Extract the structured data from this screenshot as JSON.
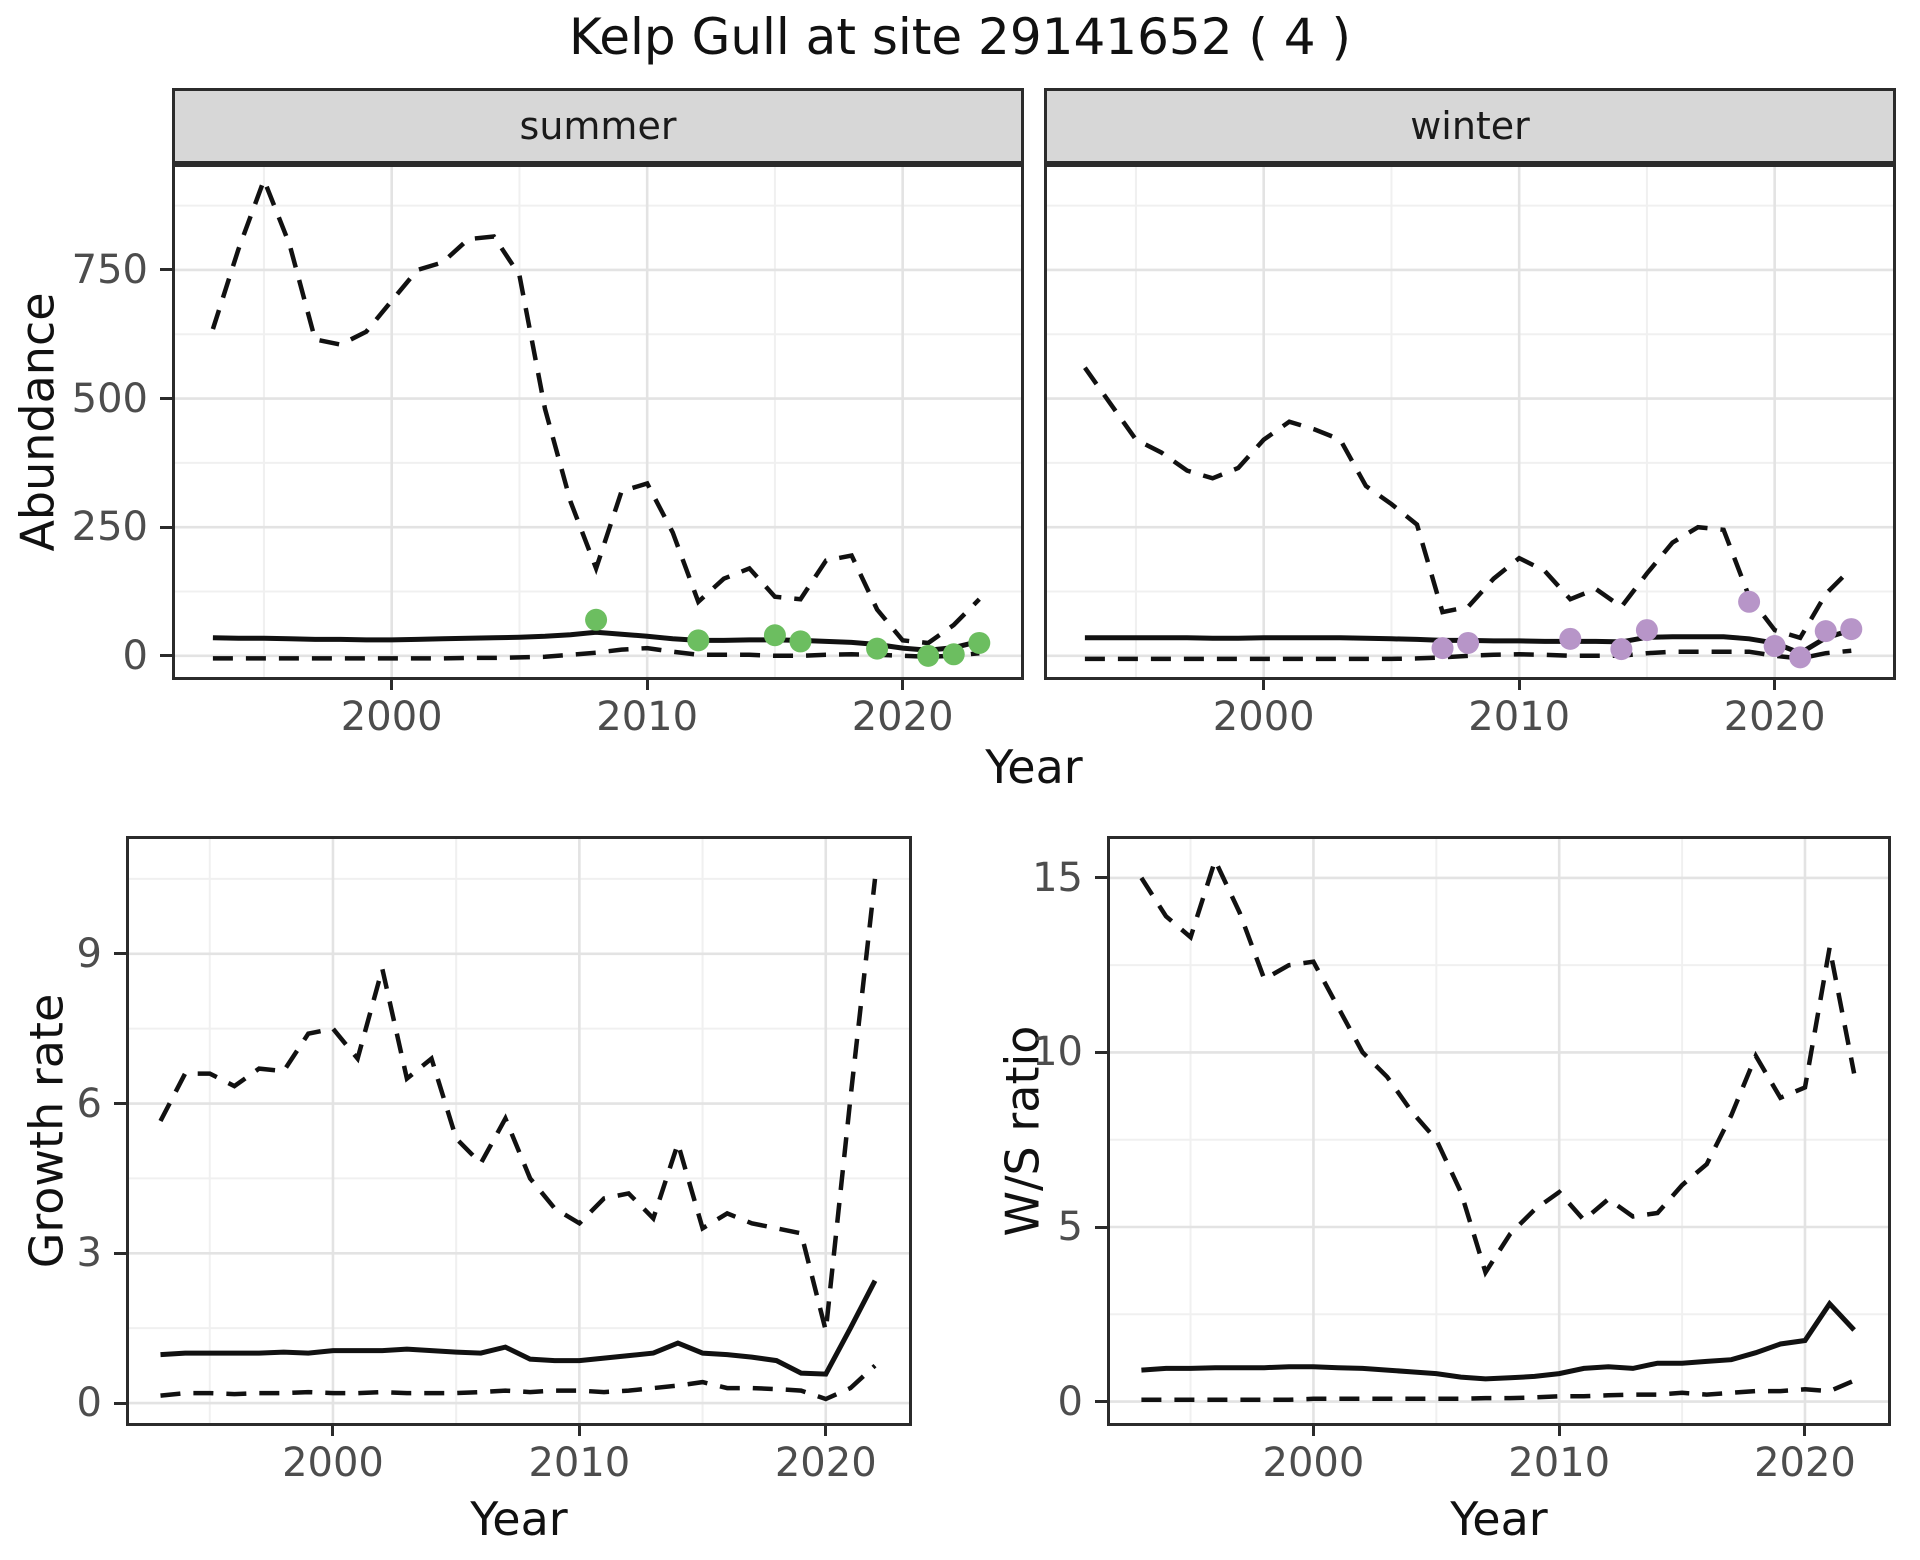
{
  "title": "Kelp Gull at site 29141652 ( 4 )",
  "colors": {
    "line": "#111111",
    "panel_border": "#2b2b2b",
    "strip_background": "#d7d7d7",
    "grid_major": "#e3e3e3",
    "grid_minor": "#f0f0f0",
    "tick_text": "#4d4d4d",
    "summer_point": "#6cbe60",
    "winter_point": "#b795c8"
  },
  "chart_data": [
    {
      "name": "abundance",
      "type": "line",
      "title": "",
      "xlabel": "Year",
      "ylabel": "Abundance",
      "xlim": [
        1991.4,
        2024.75
      ],
      "ylim": [
        -47,
        956
      ],
      "xticks": [
        2000,
        2010,
        2020
      ],
      "x_minor": [
        1995,
        2005,
        2015
      ],
      "yticks": [
        0,
        250,
        500,
        750
      ],
      "y_minor": [
        125,
        375,
        625,
        875
      ],
      "grid": true,
      "legend": "none",
      "years": [
        1993,
        1994,
        1995,
        1996,
        1997,
        1998,
        1999,
        2000,
        2001,
        2002,
        2003,
        2004,
        2005,
        2006,
        2007,
        2008,
        2009,
        2010,
        2011,
        2012,
        2013,
        2014,
        2015,
        2016,
        2017,
        2018,
        2019,
        2020,
        2021,
        2022,
        2023
      ],
      "facets": [
        {
          "label": "summer",
          "point_color": "#6cbe60",
          "series": {
            "upper_ci": [
              635,
              790,
              925,
              800,
              615,
              605,
              630,
              690,
              750,
              765,
              810,
              815,
              740,
              480,
              300,
              170,
              320,
              335,
              240,
              105,
              150,
              170,
              115,
              110,
              185,
              195,
              90,
              30,
              25,
              60,
              110
            ],
            "median": [
              35,
              34,
              34,
              33,
              32,
              32,
              31,
              31,
              32,
              33,
              34,
              35,
              36,
              38,
              41,
              46,
              42,
              38,
              33,
              30,
              30,
              31,
              31,
              30,
              28,
              26,
              22,
              15,
              11,
              16,
              28
            ],
            "lower_ci": [
              -5,
              -5,
              -5,
              -5,
              -5,
              -5,
              -5,
              -5,
              -5,
              -5,
              -4,
              -4,
              -3,
              -2,
              2,
              6,
              12,
              15,
              8,
              2,
              2,
              2,
              0,
              0,
              2,
              3,
              2,
              0,
              -2,
              0,
              5
            ]
          },
          "observations": [
            [
              2008,
              70
            ],
            [
              2012,
              30
            ],
            [
              2015,
              40
            ],
            [
              2016,
              28
            ],
            [
              2019,
              14
            ],
            [
              2021,
              0
            ],
            [
              2022,
              3
            ],
            [
              2023,
              25
            ]
          ]
        },
        {
          "label": "winter",
          "point_color": "#b795c8",
          "series": {
            "upper_ci": [
              560,
              490,
              420,
              395,
              360,
              345,
              365,
              420,
              455,
              440,
              420,
              330,
              295,
              255,
              85,
              95,
              150,
              190,
              165,
              110,
              130,
              95,
              160,
              220,
              250,
              245,
              115,
              50,
              35,
              120,
              170
            ],
            "median": [
              35,
              35,
              35,
              35,
              35,
              34,
              34,
              35,
              35,
              35,
              35,
              34,
              33,
              32,
              30,
              30,
              29,
              29,
              28,
              28,
              28,
              27,
              36,
              37,
              37,
              37,
              33,
              25,
              5,
              35,
              50
            ],
            "lower_ci": [
              -6,
              -6,
              -6,
              -6,
              -6,
              -6,
              -6,
              -6,
              -6,
              -6,
              -6,
              -6,
              -6,
              -5,
              -3,
              0,
              2,
              3,
              2,
              0,
              0,
              0,
              5,
              8,
              8,
              8,
              8,
              0,
              -5,
              5,
              10
            ]
          },
          "observations": [
            [
              2007,
              15
            ],
            [
              2008,
              25
            ],
            [
              2012,
              33
            ],
            [
              2014,
              13
            ],
            [
              2015,
              50
            ],
            [
              2019,
              105
            ],
            [
              2020,
              19
            ],
            [
              2021,
              -3
            ],
            [
              2022,
              48
            ],
            [
              2023,
              52
            ]
          ]
        }
      ]
    },
    {
      "name": "growth_rate",
      "type": "line",
      "title": "",
      "xlabel": "Year",
      "ylabel": "Growth rate",
      "xlim": [
        1991.6,
        2023.5
      ],
      "ylim": [
        -0.46,
        11.36
      ],
      "xticks": [
        2000,
        2010,
        2020
      ],
      "x_minor": [
        1995,
        2005,
        2015
      ],
      "yticks": [
        0,
        3,
        6,
        9
      ],
      "y_minor": [
        1.5,
        4.5,
        7.5,
        10.5
      ],
      "grid": true,
      "legend": "none",
      "years": [
        1993,
        1994,
        1995,
        1996,
        1997,
        1998,
        1999,
        2000,
        2001,
        2002,
        2003,
        2004,
        2005,
        2006,
        2007,
        2008,
        2009,
        2010,
        2011,
        2012,
        2013,
        2014,
        2015,
        2016,
        2017,
        2018,
        2019,
        2020,
        2021,
        2022
      ],
      "series": {
        "upper_ci": [
          5.65,
          6.6,
          6.6,
          6.35,
          6.7,
          6.65,
          7.4,
          7.5,
          6.9,
          8.7,
          6.5,
          6.9,
          5.3,
          4.8,
          5.7,
          4.5,
          3.9,
          3.6,
          4.1,
          4.2,
          3.7,
          5.2,
          3.5,
          3.8,
          3.6,
          3.5,
          3.4,
          1.45,
          6.1,
          10.5
        ],
        "median": [
          0.97,
          1.0,
          1.0,
          1.0,
          1.0,
          1.02,
          1.0,
          1.05,
          1.05,
          1.05,
          1.08,
          1.05,
          1.02,
          1.0,
          1.12,
          0.88,
          0.85,
          0.85,
          0.9,
          0.95,
          1.0,
          1.2,
          1.0,
          0.97,
          0.92,
          0.85,
          0.6,
          0.58,
          1.5,
          2.45
        ],
        "lower_ci": [
          0.15,
          0.2,
          0.2,
          0.18,
          0.2,
          0.2,
          0.22,
          0.2,
          0.2,
          0.22,
          0.2,
          0.2,
          0.2,
          0.22,
          0.25,
          0.22,
          0.25,
          0.25,
          0.22,
          0.25,
          0.3,
          0.35,
          0.42,
          0.3,
          0.3,
          0.28,
          0.25,
          0.08,
          0.3,
          0.75
        ]
      },
      "observations": []
    },
    {
      "name": "ws_ratio",
      "type": "line",
      "title": "",
      "xlabel": "Year",
      "ylabel": "W/S ratio",
      "xlim": [
        1991.6,
        2023.5
      ],
      "ylim": [
        -0.7,
        16.2
      ],
      "xticks": [
        2000,
        2010,
        2020
      ],
      "x_minor": [
        1995,
        2005,
        2015
      ],
      "yticks": [
        0,
        5,
        10,
        15
      ],
      "y_minor": [
        2.5,
        7.5,
        12.5
      ],
      "grid": true,
      "legend": "none",
      "years": [
        1993,
        1994,
        1995,
        1996,
        1997,
        1998,
        1999,
        2000,
        2001,
        2002,
        2003,
        2004,
        2005,
        2006,
        2007,
        2008,
        2009,
        2010,
        2011,
        2012,
        2013,
        2014,
        2015,
        2016,
        2017,
        2018,
        2019,
        2020,
        2021,
        2022
      ],
      "series": {
        "upper_ci": [
          15.0,
          13.9,
          13.3,
          15.5,
          14.0,
          12.1,
          12.5,
          12.6,
          11.3,
          10.0,
          9.3,
          8.3,
          7.5,
          6.0,
          3.7,
          4.8,
          5.5,
          6.0,
          5.2,
          5.8,
          5.3,
          5.4,
          6.2,
          6.8,
          8.2,
          9.9,
          8.7,
          9.0,
          13.0,
          9.4
        ],
        "median": [
          0.9,
          0.95,
          0.95,
          0.97,
          0.97,
          0.97,
          1.0,
          1.0,
          0.97,
          0.95,
          0.9,
          0.85,
          0.8,
          0.7,
          0.65,
          0.68,
          0.72,
          0.8,
          0.95,
          1.0,
          0.95,
          1.1,
          1.1,
          1.15,
          1.2,
          1.4,
          1.65,
          1.75,
          2.8,
          2.05
        ],
        "lower_ci": [
          0.05,
          0.05,
          0.05,
          0.05,
          0.05,
          0.05,
          0.05,
          0.08,
          0.08,
          0.08,
          0.08,
          0.08,
          0.08,
          0.08,
          0.1,
          0.1,
          0.12,
          0.15,
          0.15,
          0.18,
          0.2,
          0.2,
          0.25,
          0.2,
          0.25,
          0.3,
          0.3,
          0.35,
          0.3,
          0.6
        ]
      },
      "observations": []
    }
  ]
}
